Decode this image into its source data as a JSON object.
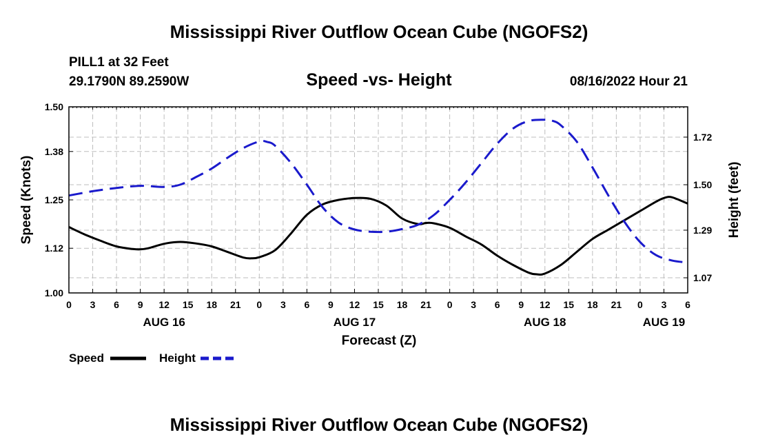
{
  "page": {
    "title": "Mississippi River Outflow Ocean Cube (NGOFS2)",
    "repeat_title": "Mississippi River Outflow Ocean Cube (NGOFS2)",
    "station": "PILL1 at 32 Feet",
    "coords": "29.1790N  89.2590W",
    "chart_title": "Speed -vs- Height",
    "date": "08/16/2022 Hour 21"
  },
  "chart_data": {
    "type": "line",
    "title": "Speed -vs- Height",
    "xlabel": "Forecast (Z)",
    "ylabel": "Speed (Knots)",
    "y2label": "Height (feet)",
    "x_unit": "hours since AUG 16 00Z",
    "xlim": [
      0,
      78
    ],
    "ylim": [
      1.0,
      1.5
    ],
    "y2lim": [
      1.0,
      1.86
    ],
    "grid": true,
    "x_ticks": [
      0,
      3,
      6,
      9,
      12,
      15,
      18,
      21,
      24,
      27,
      30,
      33,
      36,
      39,
      42,
      45,
      48,
      51,
      54,
      57,
      60,
      63,
      66,
      69,
      72,
      75,
      78
    ],
    "x_tick_labels": [
      "0",
      "3",
      "6",
      "9",
      "12",
      "15",
      "18",
      "21",
      "0",
      "3",
      "6",
      "9",
      "12",
      "15",
      "18",
      "21",
      "0",
      "3",
      "6",
      "9",
      "12",
      "15",
      "18",
      "21",
      "0",
      "3",
      "6"
    ],
    "day_labels": [
      {
        "x": 12,
        "label": "AUG 16"
      },
      {
        "x": 36,
        "label": "AUG 17"
      },
      {
        "x": 60,
        "label": "AUG 18"
      },
      {
        "x": 75,
        "label": "AUG 19"
      }
    ],
    "y_ticks": [
      1.0,
      1.12,
      1.25,
      1.38,
      1.5
    ],
    "y_tick_labels": [
      "1.00",
      "1.12",
      "1.25",
      "1.38",
      "1.50"
    ],
    "y2_ticks": [
      1.07,
      1.29,
      1.5,
      1.72
    ],
    "y2_tick_labels": [
      "1.07",
      "1.29",
      "1.50",
      "1.72"
    ],
    "series": [
      {
        "name": "Speed",
        "axis": "left",
        "color": "#000000",
        "dash": "none",
        "x": [
          0,
          2,
          4,
          6,
          8,
          9,
          10,
          12,
          14,
          16,
          18,
          20,
          22,
          23,
          24,
          26,
          28,
          30,
          32,
          34,
          36,
          38,
          40,
          42,
          44,
          45,
          46,
          48,
          50,
          52,
          54,
          56,
          58,
          59,
          60,
          62,
          64,
          66,
          68,
          70,
          72,
          74,
          75,
          76,
          78
        ],
        "values": [
          1.177,
          1.157,
          1.14,
          1.125,
          1.118,
          1.117,
          1.12,
          1.132,
          1.137,
          1.133,
          1.125,
          1.11,
          1.095,
          1.093,
          1.096,
          1.115,
          1.16,
          1.21,
          1.238,
          1.25,
          1.255,
          1.253,
          1.235,
          1.2,
          1.185,
          1.188,
          1.187,
          1.175,
          1.152,
          1.13,
          1.1,
          1.075,
          1.054,
          1.05,
          1.052,
          1.075,
          1.11,
          1.145,
          1.17,
          1.195,
          1.22,
          1.245,
          1.255,
          1.257,
          1.24
        ]
      },
      {
        "name": "Height",
        "axis": "right",
        "color": "#1a1acc",
        "dash": "20 10",
        "x": [
          0,
          3,
          6,
          9,
          12,
          14,
          16,
          18,
          20,
          22,
          24,
          25,
          26,
          28,
          30,
          32,
          34,
          36,
          38,
          40,
          42,
          44,
          46,
          48,
          50,
          52,
          54,
          56,
          58,
          60,
          61,
          62,
          64,
          66,
          68,
          70,
          72,
          74,
          76,
          78
        ],
        "values": [
          1.45,
          1.47,
          1.485,
          1.495,
          1.49,
          1.5,
          1.535,
          1.575,
          1.625,
          1.67,
          1.7,
          1.698,
          1.68,
          1.6,
          1.5,
          1.395,
          1.325,
          1.293,
          1.283,
          1.283,
          1.295,
          1.315,
          1.36,
          1.43,
          1.51,
          1.6,
          1.69,
          1.76,
          1.795,
          1.8,
          1.795,
          1.775,
          1.7,
          1.58,
          1.45,
          1.33,
          1.235,
          1.175,
          1.15,
          1.14
        ]
      }
    ]
  },
  "legend": [
    {
      "label": "Speed",
      "color": "#000000",
      "dash": "none"
    },
    {
      "label": "Height",
      "color": "#1a1acc",
      "dash": "12 6"
    }
  ]
}
